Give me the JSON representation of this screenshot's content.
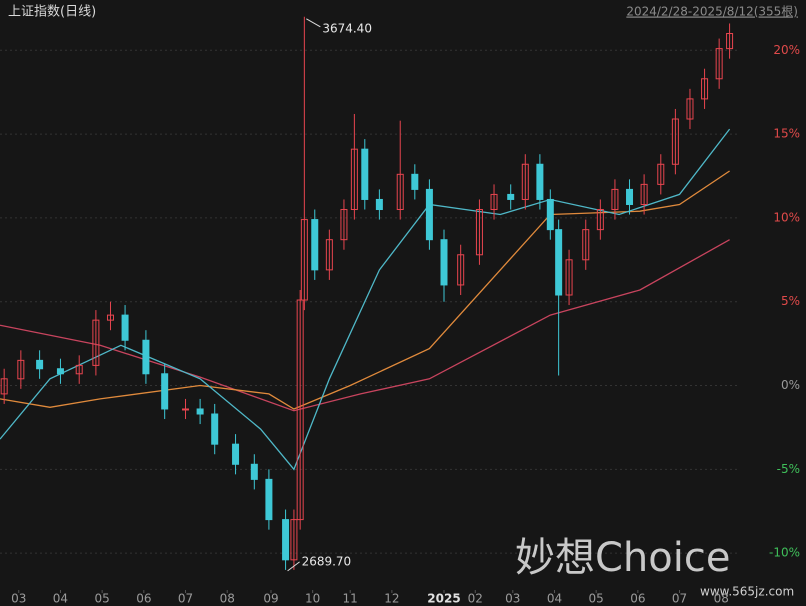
{
  "chart_data": {
    "type": "candlestick",
    "title": "上证指数(日线)",
    "subtitle": "2024/2/28-2025/8/12(355根)",
    "high_label": "3674.40",
    "low_label": "2689.70",
    "watermark": "妙想Choice",
    "site": "www.565jz.com",
    "up_color": "#e8454f",
    "down_color": "#3ec8d6",
    "xlim": [
      0,
      355
    ],
    "ylim": [
      -12.2,
      23
    ],
    "grid": true,
    "xticks": [
      {
        "value": 9,
        "label": "03"
      },
      {
        "value": 29,
        "label": "04"
      },
      {
        "value": 49,
        "label": "05"
      },
      {
        "value": 69,
        "label": "06"
      },
      {
        "value": 89,
        "label": "07"
      },
      {
        "value": 109,
        "label": "08"
      },
      {
        "value": 130,
        "label": "09"
      },
      {
        "value": 150,
        "label": "10"
      },
      {
        "value": 168,
        "label": "11"
      },
      {
        "value": 188,
        "label": "12"
      },
      {
        "value": 213,
        "label": "2025"
      },
      {
        "value": 228,
        "label": "02"
      },
      {
        "value": 246,
        "label": "03"
      },
      {
        "value": 266,
        "label": "04"
      },
      {
        "value": 286,
        "label": "05"
      },
      {
        "value": 306,
        "label": "06"
      },
      {
        "value": 326,
        "label": "07"
      },
      {
        "value": 346,
        "label": "08"
      }
    ],
    "yticks": [
      {
        "value": 20,
        "label": "20%"
      },
      {
        "value": 15,
        "label": "15%"
      },
      {
        "value": 10,
        "label": "10%"
      },
      {
        "value": 5,
        "label": "5%"
      },
      {
        "value": 0,
        "label": "0%"
      },
      {
        "value": -5,
        "label": "-5%"
      },
      {
        "value": -10,
        "label": "-10%"
      }
    ],
    "x": [
      2,
      10,
      19,
      29,
      38,
      46,
      53,
      60,
      70,
      79,
      89,
      96,
      103,
      113,
      122,
      129,
      137,
      141,
      144,
      146,
      151,
      158,
      165,
      170,
      175,
      182,
      192,
      199,
      206,
      213,
      221,
      230,
      237,
      245,
      252,
      259,
      264,
      268,
      273,
      281,
      288,
      295,
      302,
      309,
      317,
      324,
      331,
      338,
      345,
      350
    ],
    "open": [
      -0.5,
      0.4,
      1.5,
      1,
      0.7,
      1.2,
      3.9,
      4.2,
      2.7,
      0.7,
      -1.4,
      -1.4,
      -1.7,
      -3.5,
      -4.7,
      -5.6,
      -8,
      -10.4,
      -8,
      5.1,
      9.9,
      6.9,
      8.7,
      10.5,
      14.1,
      11.1,
      10.5,
      12.6,
      11.7,
      8.7,
      6,
      7.8,
      10.5,
      11.4,
      11.1,
      13.2,
      11.1,
      9.3,
      5.4,
      7.5,
      9.3,
      10.5,
      11.7,
      10.8,
      12,
      13.2,
      15.9,
      17.1,
      18.3,
      20.1
    ],
    "high": [
      1.0,
      2.1,
      2.1,
      1.6,
      1.8,
      4.5,
      5.0,
      4.8,
      3.3,
      1.3,
      -0.8,
      -0.8,
      -1.1,
      -2.9,
      -4.1,
      -5.0,
      -7.4,
      -7.4,
      5.7,
      22.0,
      10.5,
      9.3,
      11.1,
      16.2,
      14.7,
      11.7,
      15.8,
      13.2,
      12.3,
      9.3,
      8.4,
      11.1,
      12.0,
      12.0,
      13.8,
      13.8,
      11.7,
      9.9,
      8.1,
      9.9,
      11.1,
      12.3,
      12.3,
      12.6,
      13.8,
      16.5,
      17.7,
      18.9,
      20.7,
      21.6
    ],
    "low": [
      -1.1,
      -0.2,
      0.4,
      0.1,
      0.1,
      0.6,
      3.3,
      2.1,
      0.1,
      -2.0,
      -2.0,
      -2.3,
      -4.1,
      -5.3,
      -6.2,
      -8.6,
      -11.0,
      -11.0,
      -8.6,
      4.5,
      6.3,
      6.3,
      8.1,
      9.9,
      10.5,
      9.9,
      9.9,
      11.1,
      8.1,
      5.0,
      5.4,
      7.2,
      9.9,
      10.5,
      10.5,
      10.5,
      8.7,
      0.6,
      4.8,
      6.9,
      8.7,
      9.9,
      10.2,
      10.2,
      11.4,
      12.6,
      15.3,
      16.5,
      17.7,
      19.5
    ],
    "close": [
      0.4,
      1.5,
      1,
      0.7,
      1.2,
      3.9,
      4.2,
      2.7,
      0.7,
      -1.4,
      -1.4,
      -1.7,
      -3.5,
      -4.7,
      -5.6,
      -8,
      -10.4,
      -8,
      5.1,
      9.9,
      6.9,
      8.7,
      10.5,
      14.1,
      11.1,
      10.5,
      12.6,
      11.7,
      8.7,
      6,
      7.8,
      10.5,
      11.4,
      11.1,
      13.2,
      11.1,
      9.3,
      5.4,
      7.5,
      9.3,
      10.5,
      11.7,
      10.8,
      12,
      13.2,
      15.9,
      17.1,
      18.3,
      20.1,
      21
    ],
    "lines": [
      {
        "color": "#c8445e",
        "x": [
          0,
          48,
          96,
          141,
          173,
          206,
          264,
          307,
          350
        ],
        "values": [
          3.6,
          2.4,
          0.5,
          -1.5,
          -0.5,
          0.4,
          4.2,
          5.7,
          8.7
        ]
      },
      {
        "color": "#e08a3c",
        "x": [
          0,
          24,
          48,
          96,
          129,
          141,
          168,
          206,
          240,
          264,
          307,
          326,
          350
        ],
        "values": [
          -0.8,
          -1.3,
          -0.8,
          0,
          -0.5,
          -1.4,
          0,
          2.2,
          6.9,
          10.2,
          10.4,
          10.8,
          12.8
        ]
      },
      {
        "color": "#4fb8c8",
        "x": [
          0,
          24,
          58,
          96,
          125,
          141,
          158,
          182,
          206,
          240,
          264,
          297,
          326,
          350
        ],
        "values": [
          -3.2,
          0.4,
          2.4,
          0.4,
          -2.6,
          -5,
          0.4,
          6.9,
          10.8,
          10.2,
          11.1,
          10.2,
          11.4,
          15.3
        ]
      }
    ]
  }
}
